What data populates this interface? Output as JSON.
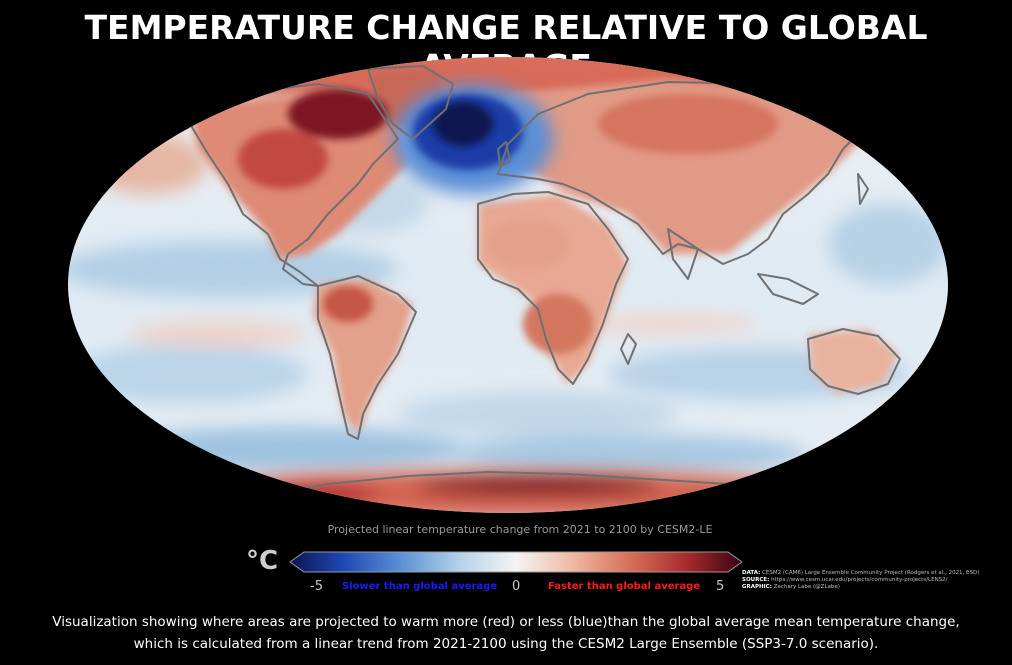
{
  "header": {
    "title": "TEMPERATURE CHANGE RELATIVE TO GLOBAL AVERAGE"
  },
  "map": {
    "subtitle": "Projected linear temperature change from 2021 to 2100 by CESM2-LE",
    "colors": {
      "deep_blue": "#0b1450",
      "blue": "#2c6bd0",
      "light_blue": "#bdd7ea",
      "pale": "#eef3f7",
      "light_red": "#f0b8a0",
      "red": "#d35a48",
      "dark_red": "#5a0a16",
      "coastline": "#707070"
    }
  },
  "colorbar": {
    "unit": "°C",
    "min_label": "-5",
    "mid_label": "0",
    "max_label": "5",
    "slower_label": "Slower than global average",
    "faster_label": "Faster than global average",
    "min": -5,
    "max": 5
  },
  "credits": {
    "data_key": "DATA:",
    "data_text": "CESM2 (CAM6) Large Ensemble Community Project (Rodgers et al., 2021, ESD)",
    "source_key": "SOURCE:",
    "source_text": "https://www.cesm.ucar.edu/projects/community-projects/LENS2/",
    "graphic_key": "GRAPHIC:",
    "graphic_text": "Zachary Labe (@ZLabe)"
  },
  "caption": {
    "line1": "Visualization showing where areas are projected to warm more (red) or less (blue)than the global average mean temperature change,",
    "line2": "which is calculated from a linear trend from 2021-2100 using the CESM2 Large Ensemble (SSP3-7.0 scenario)."
  }
}
